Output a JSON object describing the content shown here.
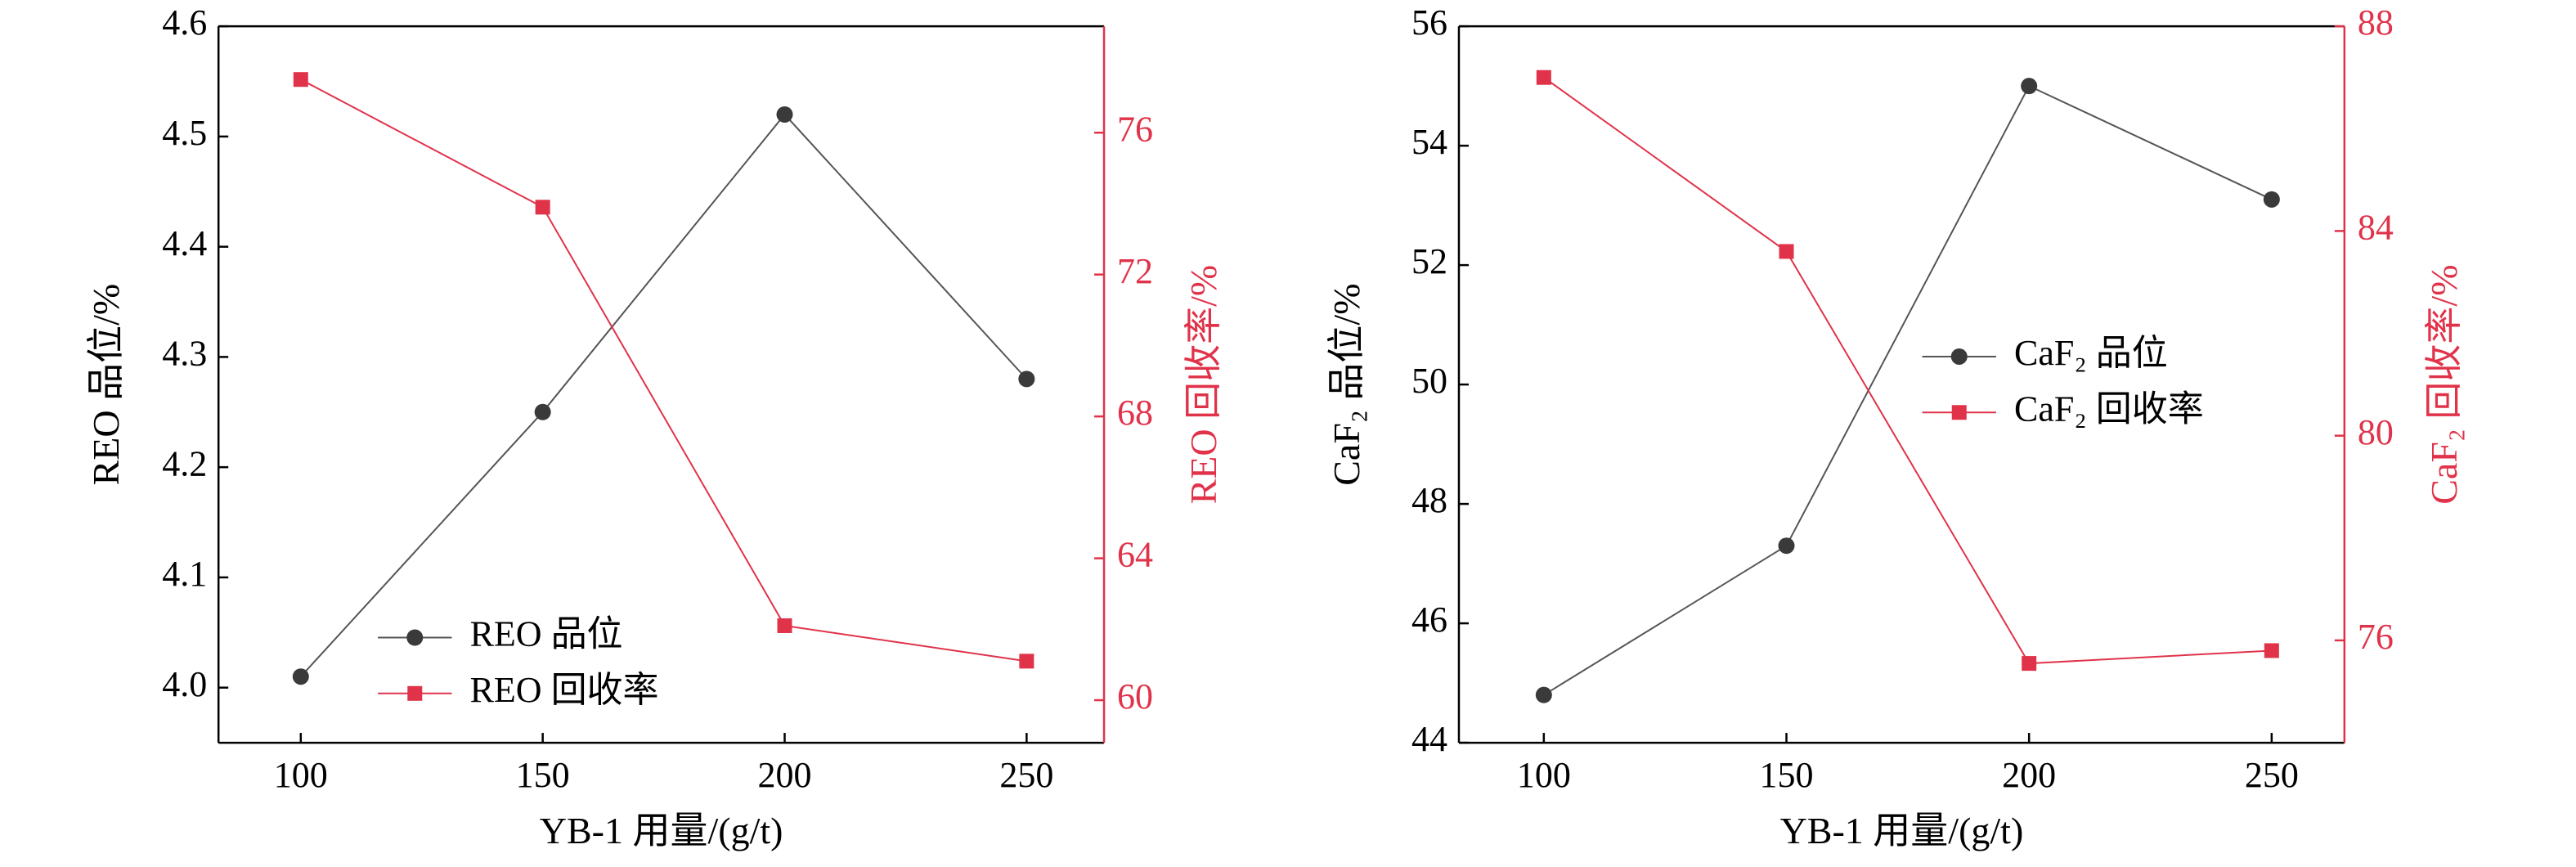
{
  "chart_data": [
    {
      "type": "line",
      "x": [
        100,
        150,
        200,
        250
      ],
      "xlim": [
        83,
        266
      ],
      "xticks": [
        100,
        150,
        200,
        250
      ],
      "ylim": [
        3.95,
        4.6
      ],
      "yticks": [
        {
          "value": 4,
          "label": "4.0"
        },
        4.1,
        4.2,
        4.3,
        4.4,
        4.5,
        4.6
      ],
      "y2lim": [
        58.8,
        79
      ],
      "y2ticks": [
        60,
        64,
        68,
        72,
        76
      ],
      "xlabel": "YB-1 用量/(g/t)",
      "ylabel": "REO 品位/%",
      "y2label": "REO 回收率/%",
      "legend_loc": "lower left",
      "series": [
        {
          "name": "REO 品位",
          "color": "#3a3a3a",
          "marker": "circle",
          "values": [
            4.01,
            4.25,
            4.52,
            4.28
          ]
        },
        {
          "name": "REO 回收率",
          "color": "#e0334a",
          "marker": "square",
          "axis": "y2",
          "values": [
            77.5,
            73.9,
            62.1,
            61.1
          ]
        }
      ]
    },
    {
      "type": "line",
      "x": [
        100,
        150,
        200,
        250
      ],
      "xlim": [
        82.5,
        265
      ],
      "xticks": [
        100,
        150,
        200,
        250
      ],
      "ylim": [
        44,
        56
      ],
      "yticks": [
        44,
        46,
        48,
        50,
        52,
        54,
        56
      ],
      "y2lim": [
        74,
        88
      ],
      "y2ticks": [
        76,
        80,
        84,
        88
      ],
      "xlabel": "YB-1 用量/(g/t)",
      "ylabel": "CaF₂ 品位/%",
      "y2label": "CaF₂ 回收率/%",
      "legend_loc": "center right",
      "series": [
        {
          "name": "CaF₂ 品位",
          "color": "#3a3a3a",
          "marker": "circle",
          "values": [
            44.8,
            47.3,
            55.0,
            53.1
          ]
        },
        {
          "name": "CaF₂ 回收率",
          "color": "#e0334a",
          "marker": "square",
          "axis": "y2",
          "values": [
            87.0,
            83.6,
            75.55,
            75.8
          ]
        }
      ]
    }
  ]
}
